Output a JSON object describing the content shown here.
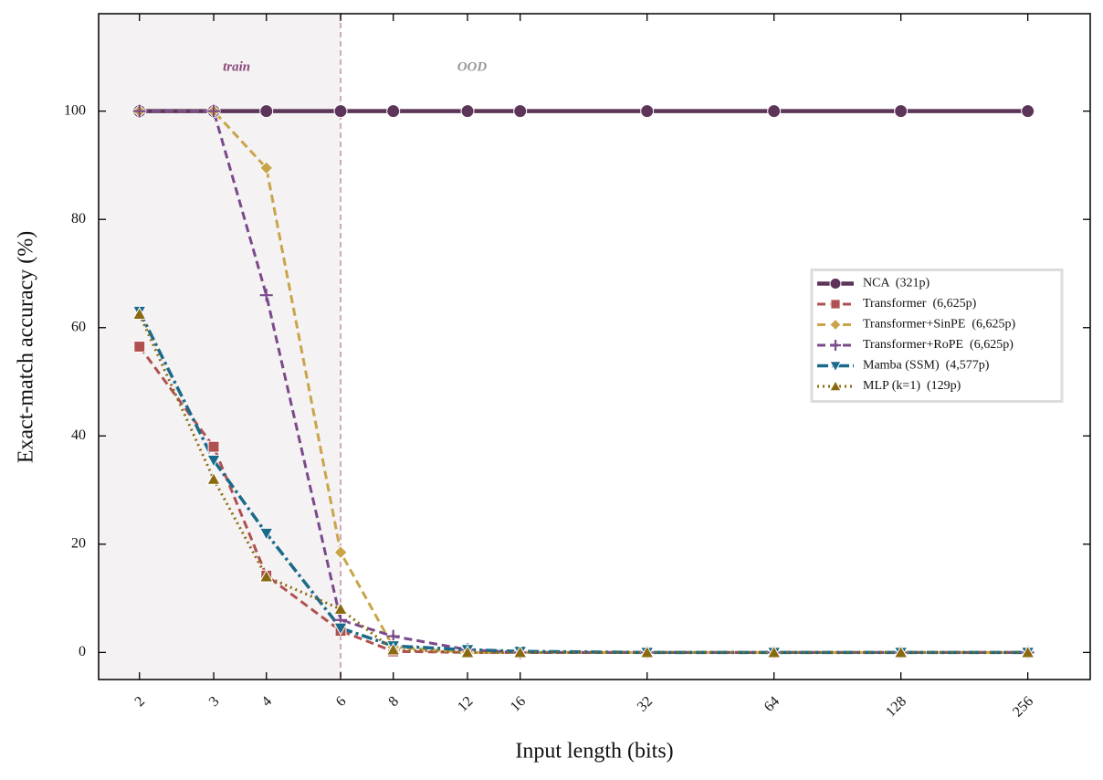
{
  "chart_data": {
    "type": "line",
    "xlabel": "Input length (bits)",
    "ylabel": "Exact-match accuracy (%)",
    "x": [
      2,
      3,
      4,
      6,
      8,
      12,
      16,
      32,
      64,
      128,
      256
    ],
    "xscale": "log2",
    "xlim": [
      1.6,
      360
    ],
    "xticks": [
      2,
      3,
      4,
      6,
      8,
      12,
      16,
      32,
      64,
      128,
      256
    ],
    "ylim": [
      -5,
      118
    ],
    "yticks": [
      0,
      20,
      40,
      60,
      80,
      100
    ],
    "legend": "center right",
    "train_boundary": 6,
    "annotations": [
      {
        "text": "train",
        "x": 3.4,
        "y": 108,
        "color": "#8a4a7a"
      },
      {
        "text": "OOD",
        "x": 12.3,
        "y": 108,
        "color": "#999999"
      }
    ],
    "series": [
      {
        "name": "NCA  (321p)",
        "color": "#5c3558",
        "dash": "",
        "width": 4.5,
        "marker": "circle",
        "values": [
          100,
          100,
          100,
          100,
          100,
          100,
          100,
          100,
          100,
          100,
          100
        ]
      },
      {
        "name": "Transformer  (6,625p)",
        "color": "#b05050",
        "dash": "9 5",
        "width": 3,
        "marker": "square",
        "values": [
          56.5,
          38,
          14.2,
          4,
          0.2,
          0,
          0,
          0,
          0,
          0,
          0
        ]
      },
      {
        "name": "Transformer+SinPE  (6,625p)",
        "color": "#c9a54a",
        "dash": "9 5",
        "width": 3,
        "marker": "diamond",
        "values": [
          100,
          100,
          89.5,
          18.5,
          1,
          0,
          0,
          0,
          0,
          0,
          0
        ]
      },
      {
        "name": "Transformer+RoPE  (6,625p)",
        "color": "#7a4a8a",
        "dash": "9 5",
        "width": 3,
        "marker": "plus",
        "values": [
          100,
          100,
          66,
          6,
          3,
          0.5,
          0,
          0,
          0,
          0,
          0
        ]
      },
      {
        "name": "Mamba (SSM)  (4,577p)",
        "color": "#1a6a8a",
        "dash": "12 4 3 4",
        "width": 3.5,
        "marker": "tridown",
        "values": [
          63,
          35.5,
          22,
          4.5,
          1.2,
          0.5,
          0.2,
          0,
          0,
          0,
          0
        ]
      },
      {
        "name": "MLP (k=1)  (129p)",
        "color": "#8a6a10",
        "dash": "2 4",
        "width": 3,
        "marker": "triup",
        "values": [
          62.5,
          32,
          14,
          8,
          0.5,
          0,
          0,
          0,
          0,
          0,
          0
        ]
      }
    ]
  }
}
